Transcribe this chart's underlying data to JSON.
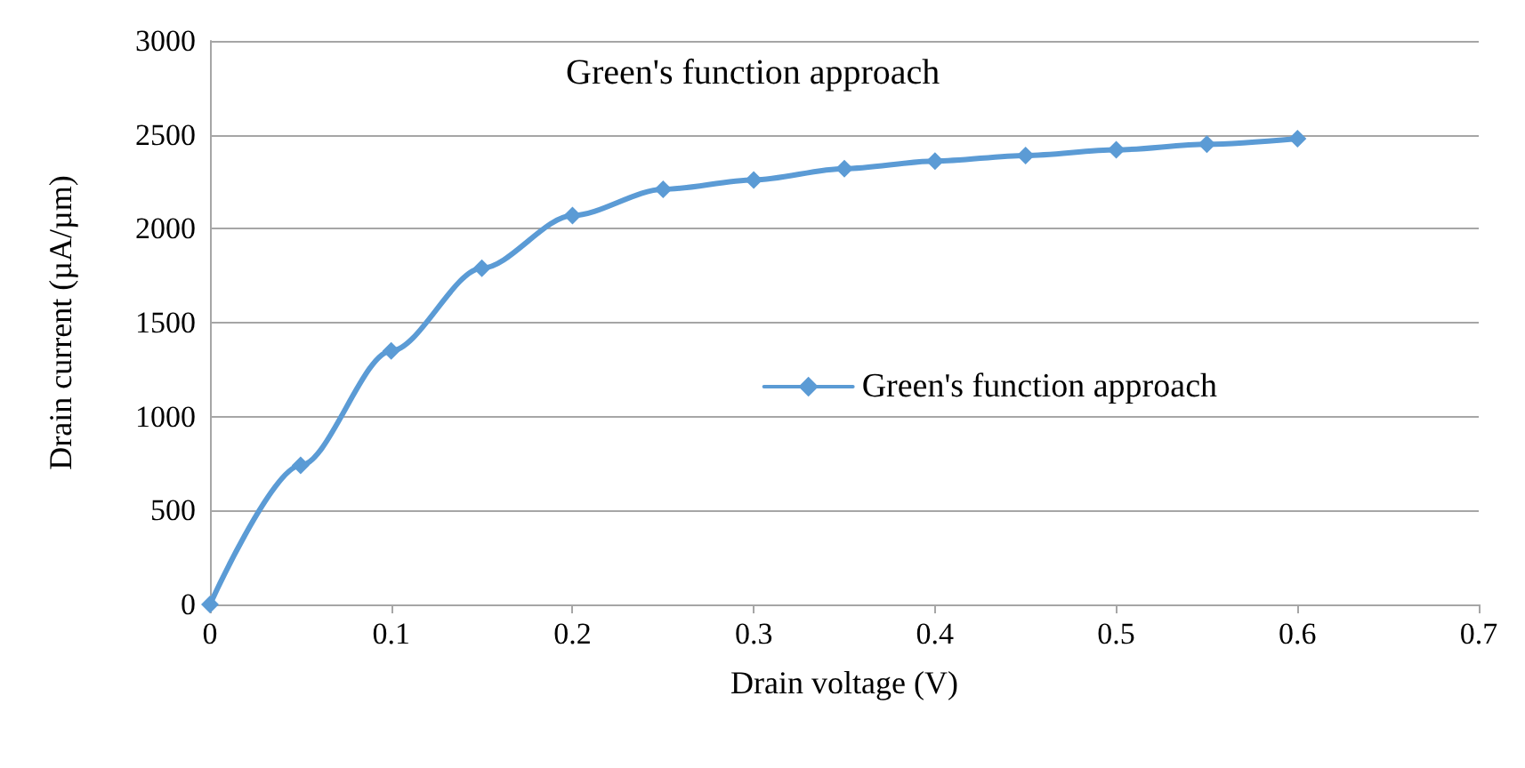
{
  "chart_data": {
    "type": "line",
    "title": "Green's function approach",
    "xlabel": "Drain voltage (V)",
    "ylabel": "Drain current (µA/µm)",
    "x": [
      0,
      0.05,
      0.1,
      0.15,
      0.2,
      0.25,
      0.3,
      0.35,
      0.4,
      0.45,
      0.5,
      0.55,
      0.6
    ],
    "series": [
      {
        "name": "Green's function approach",
        "color": "#5b9bd5",
        "values": [
          0,
          740,
          1350,
          1790,
          2070,
          2210,
          2260,
          2320,
          2360,
          2390,
          2420,
          2450,
          2480
        ]
      }
    ],
    "xlim": [
      0,
      0.7
    ],
    "xticks": [
      0,
      0.1,
      0.2,
      0.3,
      0.4,
      0.5,
      0.6,
      0.7
    ],
    "ylim": [
      0,
      3000
    ],
    "yticks": [
      0,
      500,
      1000,
      1500,
      2000,
      2500,
      3000
    ],
    "grid": "y",
    "legend": "right",
    "marker": "diamond",
    "line_style": "solid"
  }
}
